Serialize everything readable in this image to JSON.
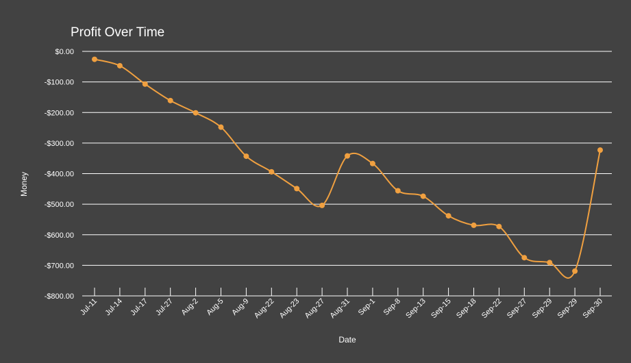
{
  "chart_data": {
    "type": "line",
    "title": "Profit Over Time",
    "xlabel": "Date",
    "ylabel": "Money",
    "ylim": [
      -800,
      0
    ],
    "y_ticks": [
      0,
      -100,
      -200,
      -300,
      -400,
      -500,
      -600,
      -700,
      -800
    ],
    "y_tick_labels": [
      "$0.00",
      "-$100.00",
      "-$200.00",
      "-$300.00",
      "-$400.00",
      "-$500.00",
      "-$600.00",
      "-$700.00",
      "-$800.00"
    ],
    "grid": true,
    "smooth": true,
    "categories": [
      "Jul-11",
      "Jul-14",
      "Jul-17",
      "Jul-27",
      "Aug-2",
      "Aug-5",
      "Aug-9",
      "Aug-22",
      "Aug-23",
      "Aug-27",
      "Aug-31",
      "Sep-1",
      "Sep-8",
      "Sep-13",
      "Sep-15",
      "Sep-18",
      "Sep-22",
      "Sep-27",
      "Sep-29",
      "Sep-29",
      "Sep-30"
    ],
    "series": [
      {
        "color": "#f0a040",
        "values": [
          -26,
          -47,
          -107,
          -161,
          -201,
          -248,
          -343,
          -394,
          -449,
          -504,
          -342,
          -367,
          -456,
          -474,
          -538,
          -569,
          -573,
          -675,
          -691,
          -719,
          -323
        ]
      }
    ]
  }
}
